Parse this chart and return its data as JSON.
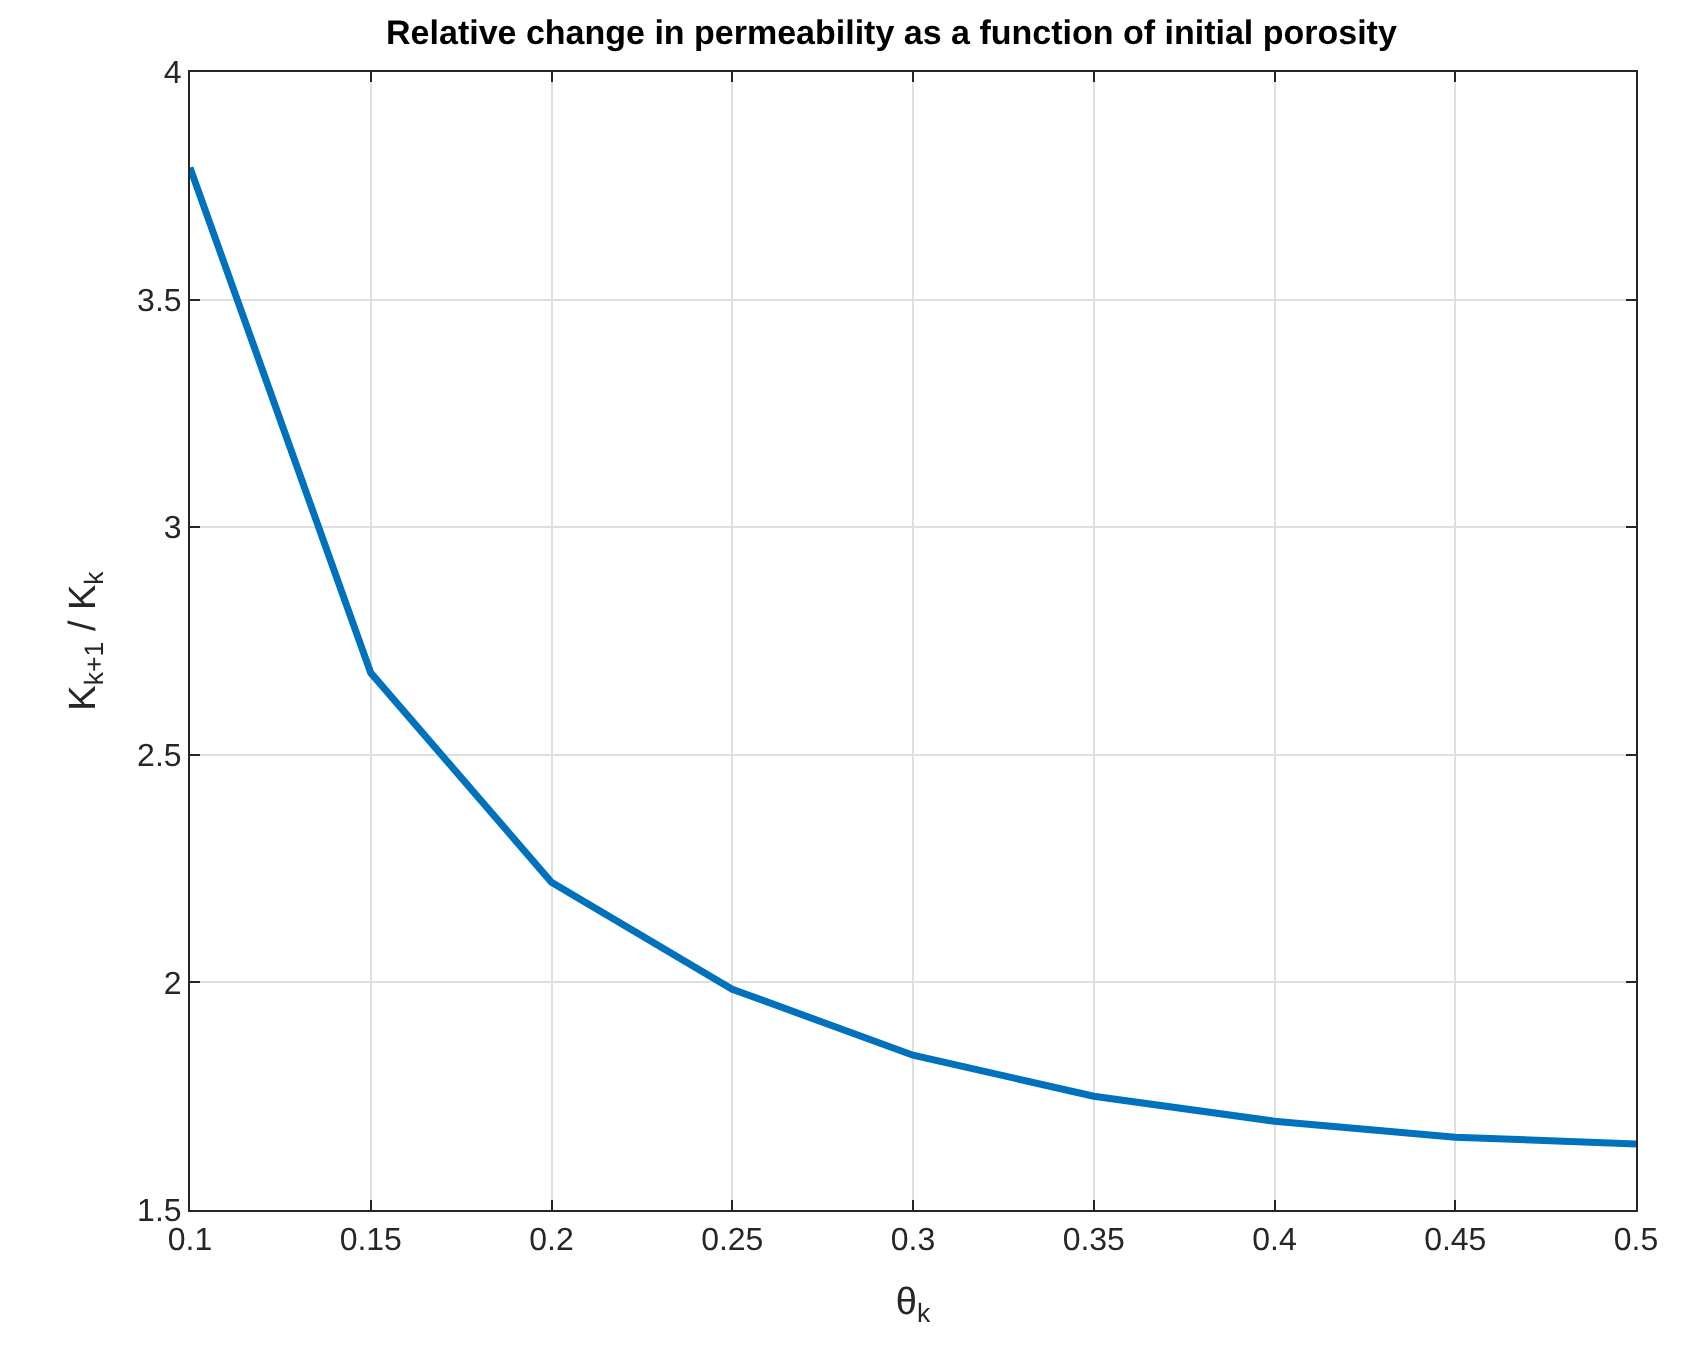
{
  "chart_data": {
    "type": "line",
    "title": "Relative change in permeability as a function of initial porosity",
    "xlabel": "θ$_{k}$",
    "ylabel": "K$_{k+1}$ / K$_{k}$",
    "x": [
      0.1,
      0.15,
      0.2,
      0.25,
      0.3,
      0.35,
      0.4,
      0.45,
      0.5
    ],
    "series": [
      {
        "color": "#0072bd",
        "values": [
          3.79,
          2.68,
          2.22,
          1.985,
          1.84,
          1.75,
          1.695,
          1.66,
          1.645
        ]
      }
    ],
    "xlim": [
      0.1,
      0.5
    ],
    "xticks": [
      0.1,
      0.15,
      0.2,
      0.25,
      0.3,
      0.35,
      0.4,
      0.45,
      0.5
    ],
    "ylim": [
      1.5,
      4
    ],
    "yticks": [
      1.5,
      2,
      2.5,
      3,
      3.5,
      4
    ],
    "grid": true,
    "legend": false,
    "marker": "none",
    "line_style": "solid"
  }
}
